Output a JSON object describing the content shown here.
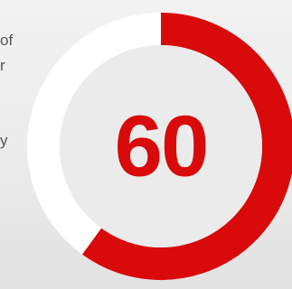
{
  "side_text": {
    "lines": [
      "of",
      "r",
      "y"
    ]
  },
  "gauge": {
    "value": "60",
    "fraction": 0.6,
    "colors": {
      "arc": "#d80a0a",
      "track": "#ffffff",
      "inner": "#ebebeb",
      "value_text": "#d80a0a"
    }
  }
}
